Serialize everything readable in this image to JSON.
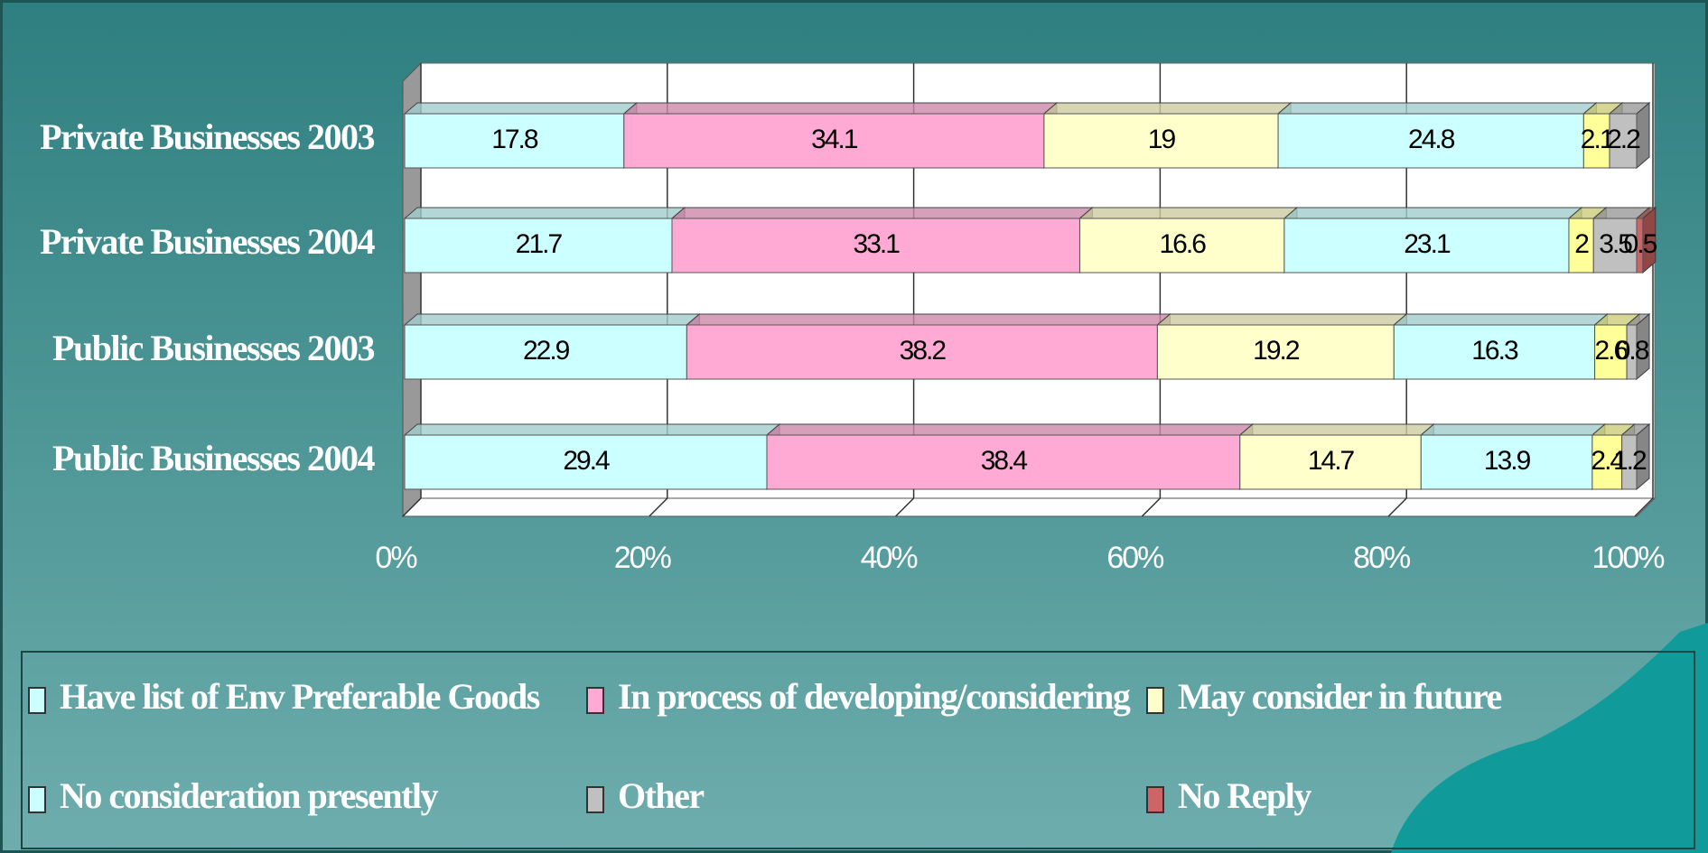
{
  "chart_data": {
    "type": "stacked-bar-horizontal",
    "categories": [
      "Private Businesses 2003",
      "Private Businesses 2004",
      "Public Businesses 2003",
      "Public Businesses 2004"
    ],
    "series": [
      {
        "name": "Have list of Env Preferable Goods",
        "color": "#ccffff",
        "values": [
          17.8,
          21.7,
          22.9,
          29.4
        ]
      },
      {
        "name": "In process of developing/considering",
        "color": "#ffaad4",
        "values": [
          34.1,
          33.1,
          38.2,
          38.4
        ]
      },
      {
        "name": "May consider in future",
        "color": "#ffffcc",
        "values": [
          19,
          16.6,
          19.2,
          14.7
        ]
      },
      {
        "name": "No consideration presently",
        "color": "#ccffff",
        "values": [
          24.8,
          23.1,
          16.3,
          13.9
        ]
      },
      {
        "color": "#ffff99",
        "values": [
          2.1,
          2,
          2.6,
          2.4
        ]
      },
      {
        "name": "Other",
        "color": "#c0c0c0",
        "values": [
          2.2,
          3.5,
          0.8,
          1.2
        ]
      },
      {
        "name": "No Reply",
        "color": "#cc6666",
        "values": [
          null,
          0.5,
          null,
          null
        ]
      }
    ],
    "xlim": [
      0,
      100
    ],
    "xticks": [
      {
        "value": 0,
        "label": "0%"
      },
      {
        "value": 20,
        "label": "20%"
      },
      {
        "value": 40,
        "label": "40%"
      },
      {
        "value": 60,
        "label": "60%"
      },
      {
        "value": 80,
        "label": "80%"
      },
      {
        "value": 100,
        "label": "100%"
      }
    ],
    "grid": true,
    "legend": "bottom"
  }
}
